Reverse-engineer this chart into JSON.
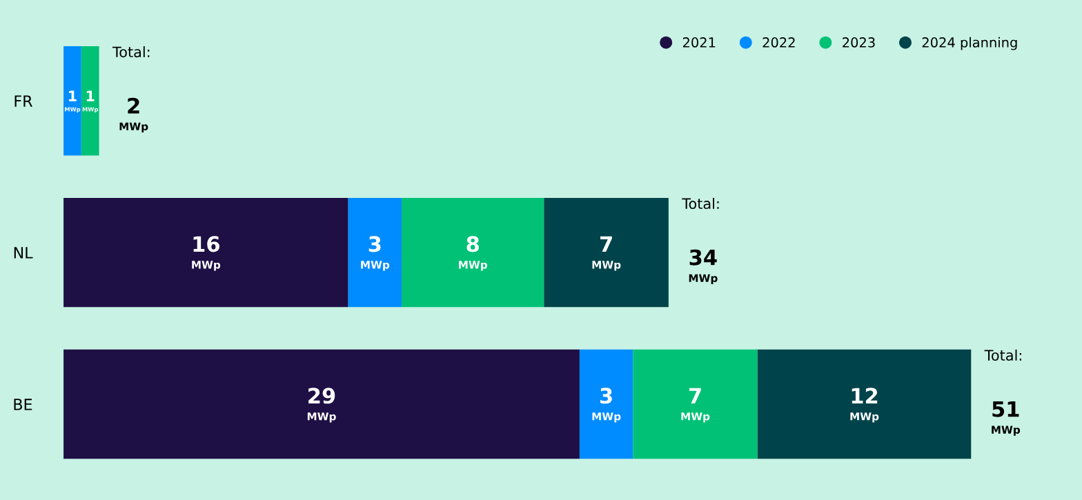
{
  "chart_data": {
    "type": "bar",
    "orientation": "horizontal",
    "stacked": true,
    "categories": [
      "FR",
      "NL",
      "BE"
    ],
    "series": [
      {
        "name": "2021",
        "color": "#1e1045",
        "values": [
          null,
          16,
          29
        ],
        "value_labels": [
          null,
          "16\nMWp",
          "29\nMWp"
        ]
      },
      {
        "name": "2022",
        "color": "#008cff",
        "values": [
          1,
          3,
          3
        ],
        "value_labels": [
          "1\nMWp",
          "3\nMWp",
          "3\nMWp"
        ]
      },
      {
        "name": "2023",
        "color": "#00c176",
        "values": [
          1,
          8,
          7
        ],
        "value_labels": [
          "1\nMWp",
          "8\nMWp",
          "7\nMWp"
        ]
      },
      {
        "name": "2024 planning",
        "color": "#00434a",
        "values": [
          null,
          7,
          12
        ],
        "value_labels": [
          null,
          "7\nMWp",
          "12\nMWp"
        ]
      }
    ],
    "totals": [
      "Total:\n2\nMWp",
      "Total:\n34\nMWp",
      "Total:\n51\nMWp"
    ],
    "tick_labels": "y",
    "grid": false,
    "legend": "top right",
    "marker": "circle"
  }
}
